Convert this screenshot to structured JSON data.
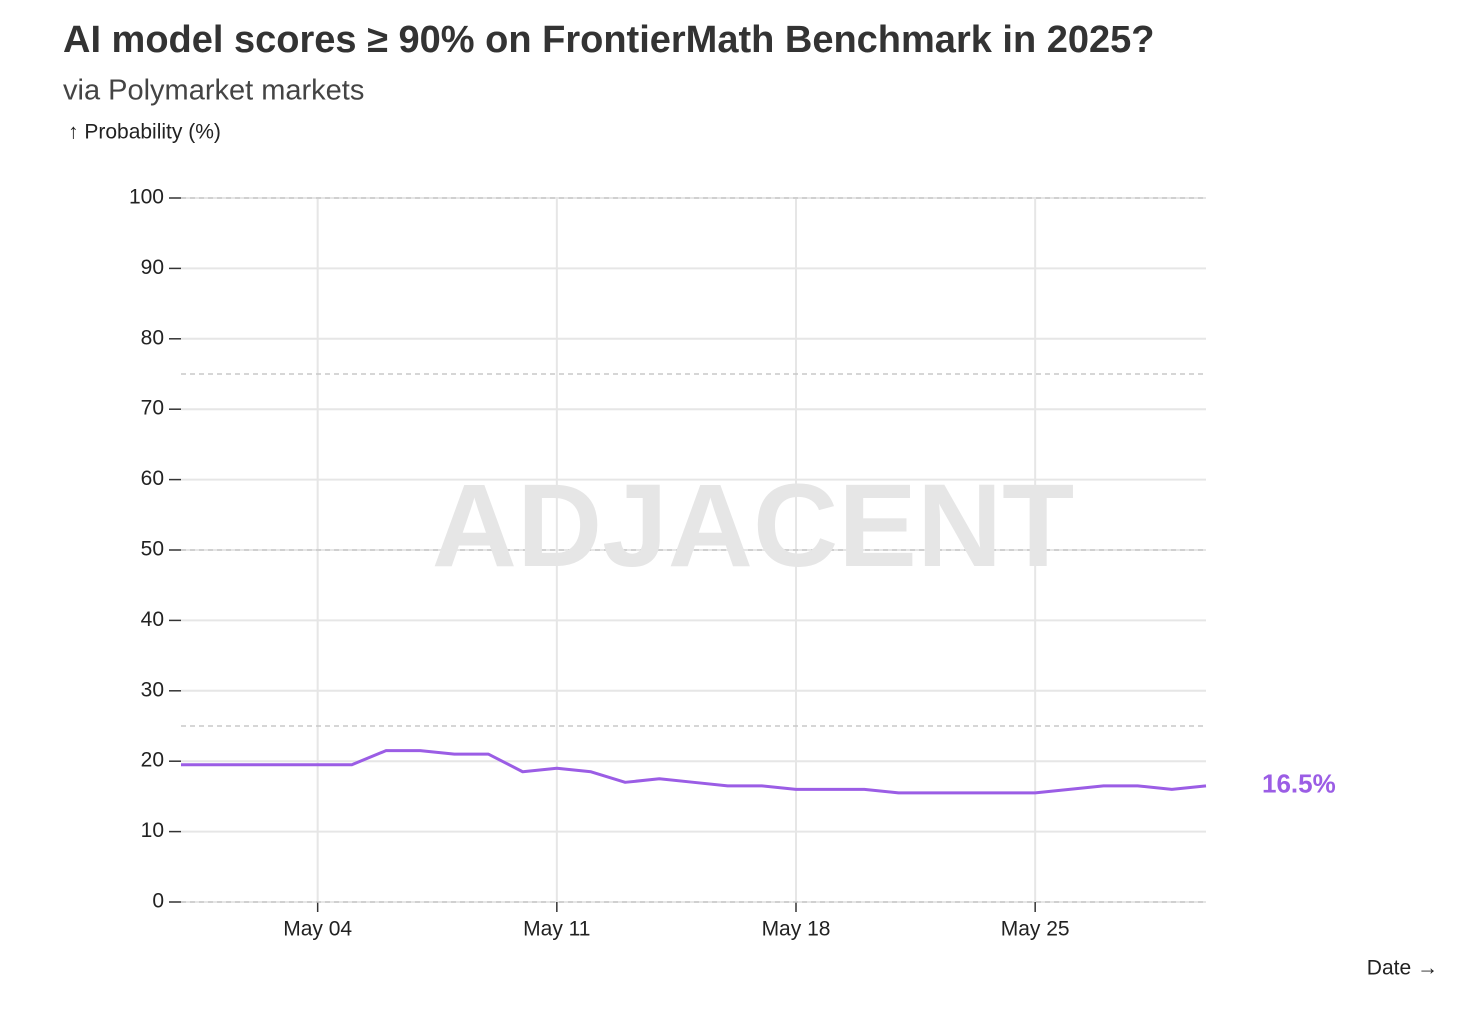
{
  "chart_data": {
    "type": "line",
    "title": "AI model scores ≥ 90% on FrontierMath Benchmark in 2025?",
    "subtitle": "via Polymarket markets",
    "y_label": "↑ Probability (%)",
    "x_label": "Date →",
    "watermark": "ADJACENT",
    "x": [
      "04-30",
      "05-01",
      "05-02",
      "05-03",
      "05-04",
      "05-05",
      "05-06",
      "05-07",
      "05-08",
      "05-09",
      "05-10",
      "05-11",
      "05-12",
      "05-13",
      "05-14",
      "05-15",
      "05-16",
      "05-17",
      "05-18",
      "05-19",
      "05-20",
      "05-21",
      "05-22",
      "05-23",
      "05-24",
      "05-25",
      "05-26",
      "05-27",
      "05-28",
      "05-29",
      "05-30"
    ],
    "values": [
      19.5,
      19.5,
      19.5,
      19.5,
      19.5,
      19.5,
      21.5,
      21.5,
      21,
      21,
      18.5,
      19,
      18.5,
      17,
      17.5,
      17,
      16.5,
      16.5,
      16,
      16,
      16,
      15.5,
      15.5,
      15.5,
      15.5,
      15.5,
      16,
      16.5,
      16.5,
      16,
      16.5
    ],
    "value_labels": [
      null,
      null,
      null,
      null,
      null,
      null,
      null,
      null,
      null,
      null,
      null,
      null,
      null,
      null,
      null,
      null,
      null,
      null,
      null,
      null,
      null,
      null,
      null,
      null,
      null,
      null,
      null,
      null,
      null,
      null,
      "16.5%"
    ],
    "color": "#9b5de5",
    "xlim": [
      "04-30",
      "05-30"
    ],
    "xticks": [
      {
        "value": "05-04",
        "label": "May 04"
      },
      {
        "value": "05-11",
        "label": "May 11"
      },
      {
        "value": "05-18",
        "label": "May 18"
      },
      {
        "value": "05-25",
        "label": "May 25"
      }
    ],
    "ylim": [
      0,
      100
    ],
    "yticks": [
      0,
      10,
      20,
      30,
      40,
      50,
      60,
      70,
      80,
      90,
      100
    ],
    "ref_lines": [
      0,
      25,
      50,
      75,
      100
    ],
    "grid": true
  }
}
